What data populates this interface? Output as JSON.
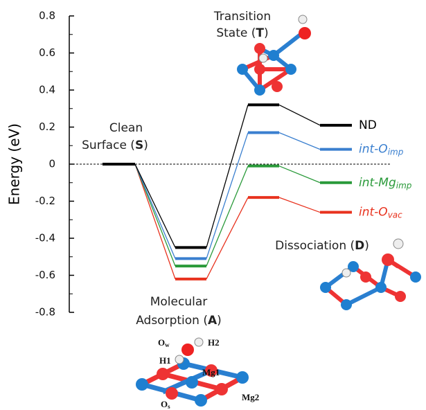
{
  "chart_data": {
    "type": "energy-diagram",
    "y_label": "Energy (eV)",
    "ylim": [
      -0.8,
      0.8
    ],
    "yticks": [
      -0.8,
      -0.6,
      -0.4,
      -0.2,
      0.0,
      0.2,
      0.4,
      0.6,
      0.8
    ],
    "stages": [
      {
        "label": [
          [
            "Clean"
          ],
          [
            "Surface (",
            "S",
            ")"
          ]
        ]
      },
      {
        "label": [
          [
            "Molecular"
          ],
          [
            "Adsorption (",
            "A",
            ")"
          ]
        ]
      },
      {
        "label": [
          [
            "Transition"
          ],
          [
            "State (",
            "T",
            ")"
          ]
        ]
      },
      {
        "label": [
          [
            "Dissociation (",
            "D",
            ")"
          ]
        ]
      }
    ],
    "series": [
      {
        "name": "int-O",
        "name_subscript": "vac",
        "color": "#e8321e",
        "values": [
          0,
          -0.62,
          -0.18,
          -0.26
        ]
      },
      {
        "name": "int-Mg",
        "name_subscript": "imp",
        "color": "#2a9a3a",
        "values": [
          0,
          -0.55,
          -0.01,
          -0.1
        ]
      },
      {
        "name": "int-O",
        "name_subscript": "imp",
        "color": "#3a7fcf",
        "values": [
          0,
          -0.51,
          0.17,
          0.08
        ]
      },
      {
        "name": "ND",
        "color": "#000000",
        "values": [
          0,
          -0.45,
          0.32,
          0.21
        ]
      }
    ],
    "structure_labels": [
      {
        "text": "O",
        "subscript": "w"
      },
      {
        "text": "H2"
      },
      {
        "text": "H1"
      },
      {
        "text": "Mg1"
      },
      {
        "text": "O",
        "subscript": "s"
      },
      {
        "text": "Mg2"
      }
    ]
  }
}
